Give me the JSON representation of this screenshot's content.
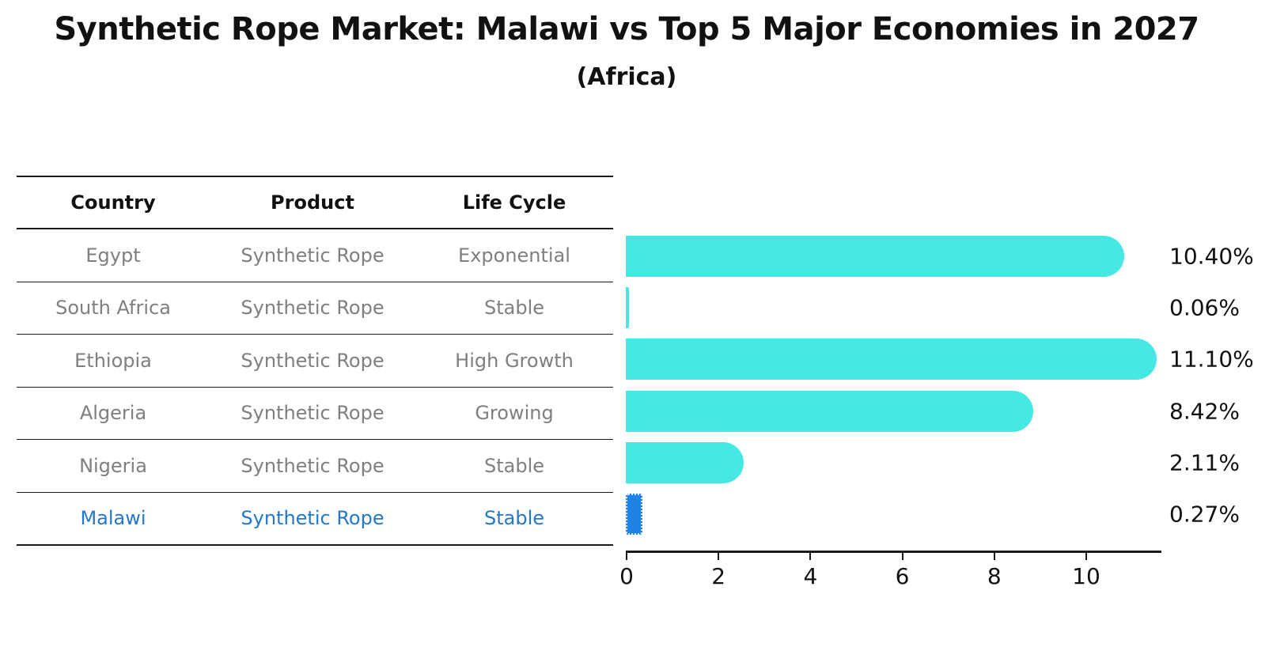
{
  "title": "Synthetic Rope Market: Malawi vs Top 5 Major Economies in 2027",
  "subtitle": "(Africa)",
  "table": {
    "headers": [
      "Country",
      "Product",
      "Life Cycle"
    ],
    "rows": [
      {
        "country": "Egypt",
        "product": "Synthetic Rope",
        "life_cycle": "Exponential",
        "highlight": false
      },
      {
        "country": "South Africa",
        "product": "Synthetic Rope",
        "life_cycle": "Stable",
        "highlight": false
      },
      {
        "country": "Ethiopia",
        "product": "Synthetic Rope",
        "life_cycle": "High Growth",
        "highlight": false
      },
      {
        "country": "Algeria",
        "product": "Synthetic Rope",
        "life_cycle": "Growing",
        "highlight": false
      },
      {
        "country": "Nigeria",
        "product": "Synthetic Rope",
        "life_cycle": "Stable",
        "highlight": false
      },
      {
        "country": "Malawi",
        "product": "Synthetic Rope",
        "life_cycle": "Stable",
        "highlight": true
      }
    ]
  },
  "chart_data": {
    "type": "bar",
    "orientation": "horizontal",
    "categories": [
      "Egypt",
      "South Africa",
      "Ethiopia",
      "Algeria",
      "Nigeria",
      "Malawi"
    ],
    "values": [
      10.4,
      0.06,
      11.1,
      8.42,
      2.11,
      0.27
    ],
    "value_labels": [
      "10.40%",
      "0.06%",
      "11.10%",
      "8.42%",
      "2.11%",
      "0.27%"
    ],
    "highlight_index": 5,
    "x_ticks": [
      0,
      2,
      4,
      6,
      8,
      10
    ],
    "xlim": [
      0,
      11.65
    ],
    "grid": false,
    "legend_position": "none",
    "bar_color": "#46e8e4",
    "highlight_bar_color": "#1f82e5",
    "highlight_text_color": "#2578c8",
    "value_label_color": "#111111"
  }
}
